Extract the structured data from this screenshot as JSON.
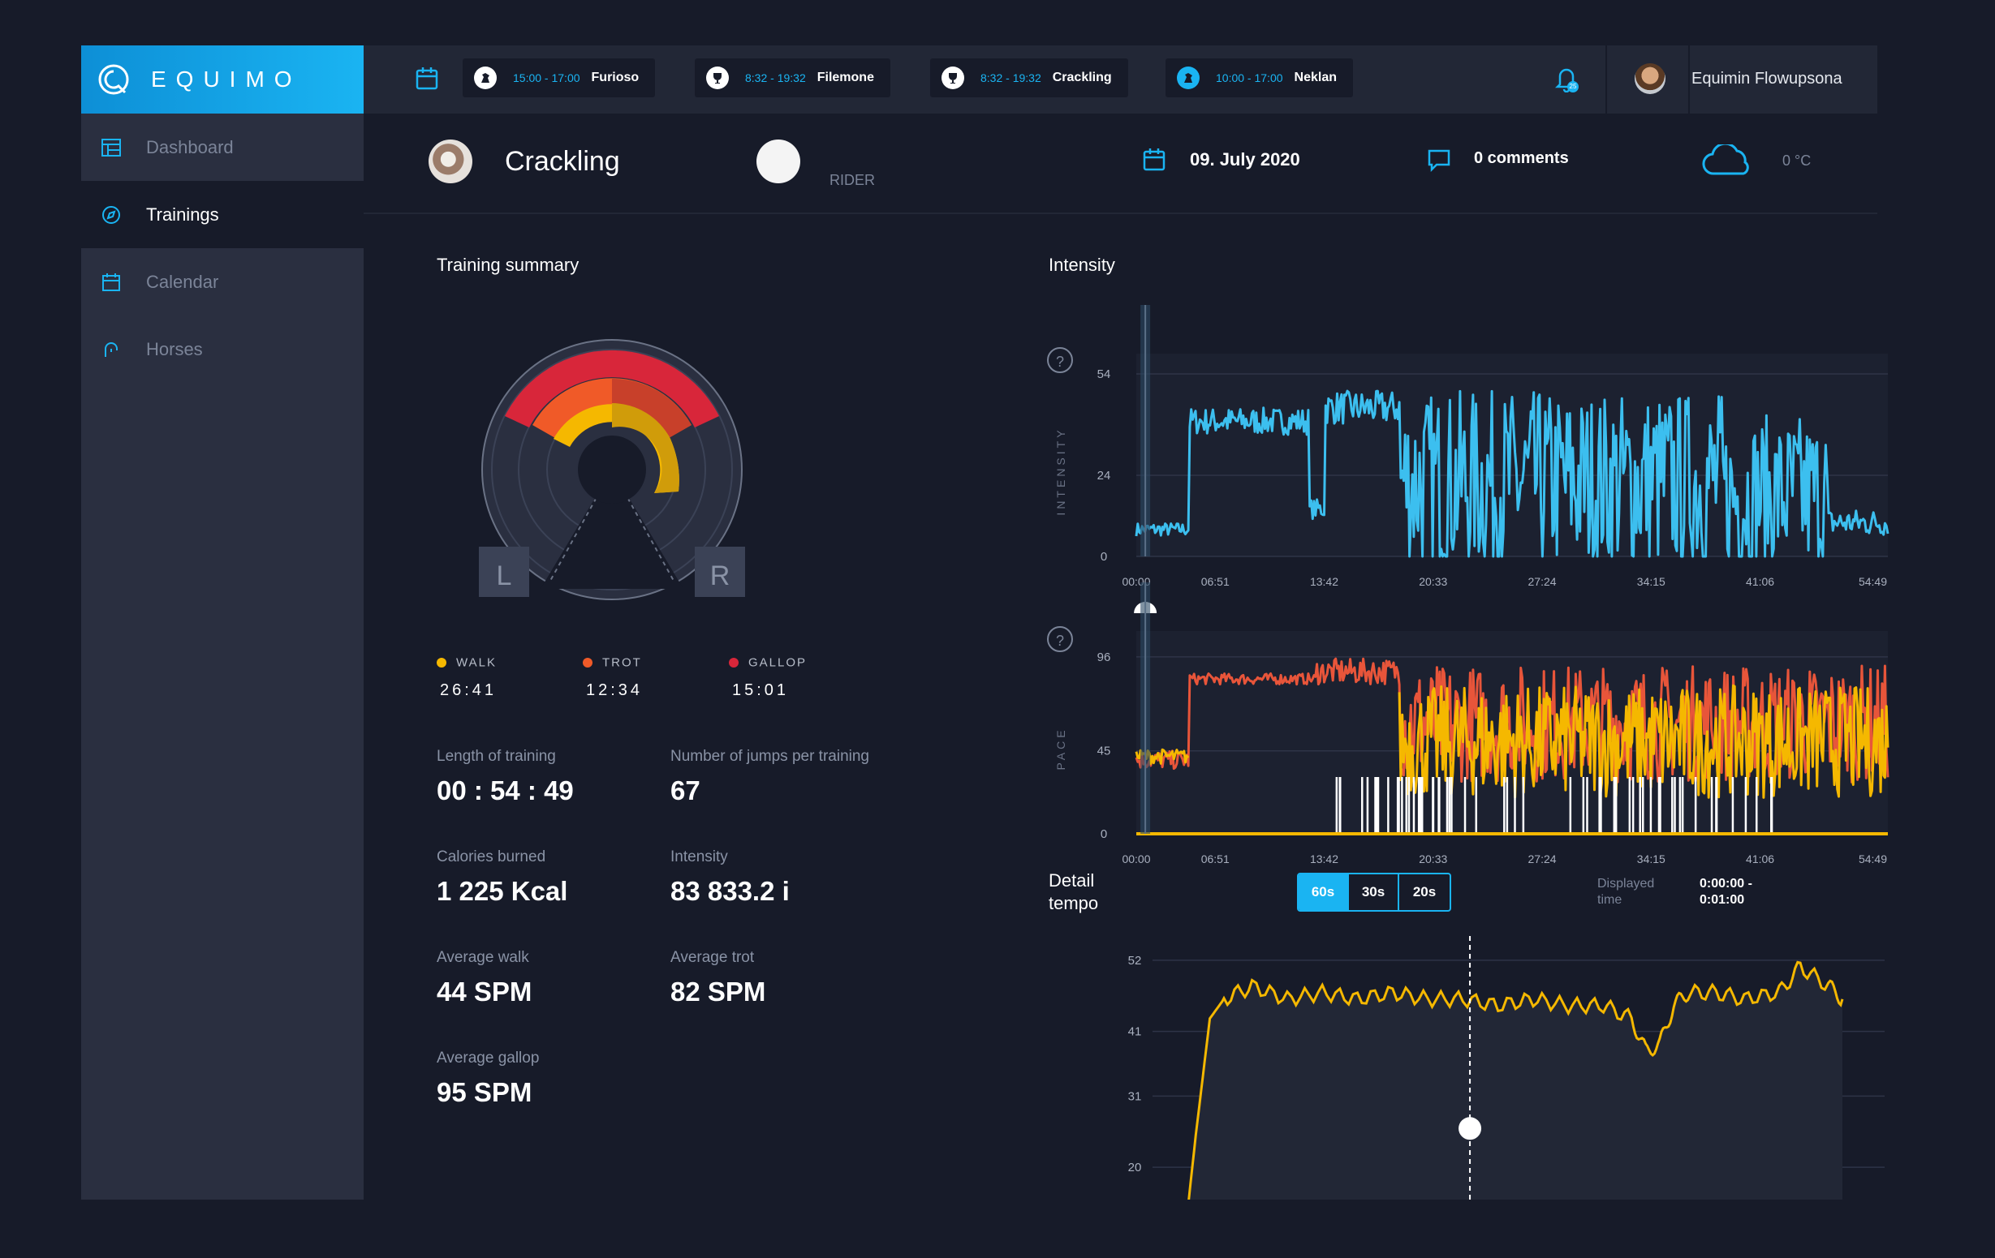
{
  "app": {
    "logo_text": "EQUIMO"
  },
  "sidebar": {
    "items": [
      {
        "label": "Dashboard",
        "icon": "table-icon"
      },
      {
        "label": "Trainings",
        "icon": "compass-icon"
      },
      {
        "label": "Calendar",
        "icon": "calendar-icon"
      },
      {
        "label": "Horses",
        "icon": "horseshoe-icon"
      }
    ],
    "active": "Trainings"
  },
  "topbar": {
    "sessions": [
      {
        "time": "15:00 - 17:00",
        "name": "Furioso",
        "icon": "horse-icon"
      },
      {
        "time": "8:32 - 19:32",
        "name": "Filemone",
        "icon": "trophy-icon"
      },
      {
        "time": "8:32 - 19:32",
        "name": "Crackling",
        "icon": "trophy-icon"
      },
      {
        "time": "10:00 - 17:00",
        "name": "Neklan",
        "icon": "horse-icon"
      }
    ],
    "notifications": "25",
    "user_name": "Equimin Flowupsona"
  },
  "header": {
    "horse_name": "Crackling",
    "rider_label": "RIDER",
    "date": "09. July 2020",
    "comments": "0 comments",
    "temperature": "0 °C"
  },
  "summary": {
    "title": "Training summary",
    "gauge_left": "L",
    "gauge_right": "R",
    "legend": [
      {
        "label": "WALK",
        "value": "26:41",
        "color": "#f5b800"
      },
      {
        "label": "TROT",
        "value": "12:34",
        "color": "#f05a28"
      },
      {
        "label": "GALLOP",
        "value": "15:01",
        "color": "#d8263a"
      }
    ],
    "stats": [
      {
        "label": "Length of training",
        "value": "00 : 54 : 49"
      },
      {
        "label": "Number of jumps per training",
        "value": "67"
      },
      {
        "label": "Calories burned",
        "value": "1 225 Kcal"
      },
      {
        "label": "Intensity",
        "value": "83 833.2 i"
      },
      {
        "label": "Average walk",
        "value": "44 SPM"
      },
      {
        "label": "Average trot",
        "value": "82 SPM"
      },
      {
        "label": "Average gallop",
        "value": "95 SPM"
      }
    ]
  },
  "intensity": {
    "title": "Intensity",
    "help": "?",
    "time_ticks": [
      "00:00",
      "06:51",
      "13:42",
      "20:33",
      "27:24",
      "34:15",
      "41:06",
      "54:49"
    ]
  },
  "detail": {
    "title_line1": "Detail",
    "title_line2": "tempo",
    "options": [
      "60s",
      "30s",
      "20s"
    ],
    "selected": "60s",
    "displayed_label": "Displayed time",
    "displayed_value": "0:00:00 - 0:01:00"
  },
  "chart_data": [
    {
      "type": "line",
      "ylabel": "INTENSITY",
      "yticks": [
        0,
        24,
        54
      ],
      "ylim": [
        0,
        60
      ],
      "x": [
        "00:00",
        "06:51",
        "13:42",
        "20:33",
        "27:24",
        "34:15",
        "41:06",
        "54:49"
      ],
      "series": [
        {
          "color": "#3cbfef",
          "segments": [
            {
              "from": 0.0,
              "to": 0.07,
              "base": 8,
              "jitter": 4
            },
            {
              "from": 0.07,
              "to": 0.23,
              "base": 40,
              "jitter": 8
            },
            {
              "from": 0.23,
              "to": 0.25,
              "base": 14,
              "jitter": 6
            },
            {
              "from": 0.25,
              "to": 0.35,
              "base": 44,
              "jitter": 10
            },
            {
              "from": 0.35,
              "to": 0.78,
              "base": 22,
              "jitter": 34
            },
            {
              "from": 0.78,
              "to": 0.92,
              "base": 18,
              "jitter": 30
            },
            {
              "from": 0.92,
              "to": 1.0,
              "base": 10,
              "jitter": 8
            }
          ]
        }
      ]
    },
    {
      "type": "line",
      "ylabel": "PACE",
      "yticks": [
        0,
        45,
        96
      ],
      "ylim": [
        0,
        110
      ],
      "x": [
        "00:00",
        "06:51",
        "13:42",
        "20:33",
        "27:24",
        "34:15",
        "41:06",
        "54:49"
      ],
      "series": [
        {
          "color": "#e8553a",
          "segments": [
            {
              "from": 0.0,
              "to": 0.07,
              "base": 40,
              "jitter": 10
            },
            {
              "from": 0.07,
              "to": 0.24,
              "base": 84,
              "jitter": 6
            },
            {
              "from": 0.24,
              "to": 0.35,
              "base": 88,
              "jitter": 14
            },
            {
              "from": 0.35,
              "to": 1.0,
              "base": 60,
              "jitter": 40
            }
          ]
        },
        {
          "color": "#f5b800",
          "segments": [
            {
              "from": 0.0,
              "to": 0.07,
              "base": 42,
              "jitter": 8
            },
            {
              "from": 0.35,
              "to": 1.0,
              "base": 50,
              "jitter": 38
            }
          ]
        }
      ]
    },
    {
      "type": "area",
      "yticks": [
        20,
        31,
        41,
        52
      ],
      "ylim": [
        15,
        55
      ],
      "series": [
        {
          "color": "#f5b800",
          "points": [
            [
              0,
              5
            ],
            [
              0.02,
              25
            ],
            [
              0.04,
              43
            ],
            [
              0.06,
              46
            ],
            [
              0.1,
              48
            ],
            [
              0.15,
              46
            ],
            [
              0.2,
              47
            ],
            [
              0.25,
              46
            ],
            [
              0.3,
              47
            ],
            [
              0.35,
              46
            ],
            [
              0.4,
              46
            ],
            [
              0.45,
              45
            ],
            [
              0.5,
              46
            ],
            [
              0.55,
              45
            ],
            [
              0.6,
              45
            ],
            [
              0.64,
              43
            ],
            [
              0.66,
              38
            ],
            [
              0.68,
              39
            ],
            [
              0.7,
              45
            ],
            [
              0.72,
              47
            ],
            [
              0.76,
              47
            ],
            [
              0.8,
              46
            ],
            [
              0.85,
              47
            ],
            [
              0.88,
              51
            ],
            [
              0.92,
              48
            ],
            [
              0.94,
              46
            ]
          ]
        }
      ]
    }
  ]
}
